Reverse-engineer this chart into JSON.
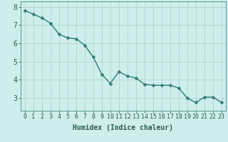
{
  "x": [
    0,
    1,
    2,
    3,
    4,
    5,
    6,
    7,
    8,
    9,
    10,
    11,
    12,
    13,
    14,
    15,
    16,
    17,
    18,
    19,
    20,
    21,
    22,
    23
  ],
  "y": [
    7.8,
    7.6,
    7.4,
    7.1,
    6.5,
    6.3,
    6.25,
    5.9,
    5.25,
    4.3,
    3.8,
    4.45,
    4.2,
    4.1,
    3.75,
    3.7,
    3.7,
    3.7,
    3.55,
    3.0,
    2.75,
    3.05,
    3.05,
    2.75
  ],
  "line_color": "#2e7d6e",
  "marker": "D",
  "marker_size": 2.5,
  "bg_color": "#cdeeed",
  "grid_color": "#b0d4d0",
  "axis_color": "#4a8a80",
  "xlabel": "Humidex (Indice chaleur)",
  "ylim": [
    2.3,
    8.3
  ],
  "xlim": [
    -0.5,
    23.5
  ],
  "yticks": [
    3,
    4,
    5,
    6,
    7,
    8
  ],
  "xticks": [
    0,
    1,
    2,
    3,
    4,
    5,
    6,
    7,
    8,
    9,
    10,
    11,
    12,
    13,
    14,
    15,
    16,
    17,
    18,
    19,
    20,
    21,
    22,
    23
  ],
  "font_color": "#2e5a52",
  "tick_fontsize": 6,
  "xlabel_fontsize": 7,
  "linewidth": 1.0
}
